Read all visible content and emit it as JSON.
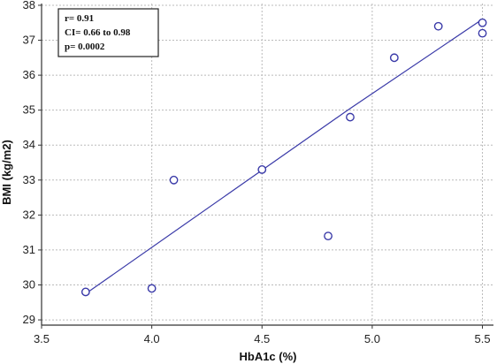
{
  "chart_data": {
    "type": "scatter",
    "title": "",
    "xlabel": "HbA1c (%)",
    "ylabel": "BMI (kg/m2)",
    "xlim": [
      3.5,
      5.55
    ],
    "ylim": [
      28.85,
      38.05
    ],
    "x_ticks": [
      "3.5",
      "4.0",
      "4.5",
      "5.0",
      "5.5"
    ],
    "y_ticks": [
      "29",
      "30",
      "31",
      "32",
      "33",
      "34",
      "35",
      "36",
      "37",
      "38"
    ],
    "grid": true,
    "points": [
      {
        "x": 3.7,
        "y": 29.8
      },
      {
        "x": 4.0,
        "y": 29.9
      },
      {
        "x": 4.1,
        "y": 33.0
      },
      {
        "x": 4.5,
        "y": 33.3
      },
      {
        "x": 4.8,
        "y": 31.4
      },
      {
        "x": 4.9,
        "y": 34.8
      },
      {
        "x": 5.1,
        "y": 36.5
      },
      {
        "x": 5.3,
        "y": 37.4
      },
      {
        "x": 5.5,
        "y": 37.5
      },
      {
        "x": 5.5,
        "y": 37.2
      }
    ],
    "regression_line": [
      {
        "x": 3.7,
        "y": 29.75
      },
      {
        "x": 4.9,
        "y": 35.05
      },
      {
        "x": 5.5,
        "y": 37.6
      }
    ],
    "colors": {
      "series": "#3a3aa8",
      "grid": "#bbbbbb",
      "axis": "#333333"
    },
    "stats_box": {
      "line1": "r= 0.91",
      "line2": "CI= 0.66 to 0.98",
      "line3": "p= 0.0002"
    }
  }
}
